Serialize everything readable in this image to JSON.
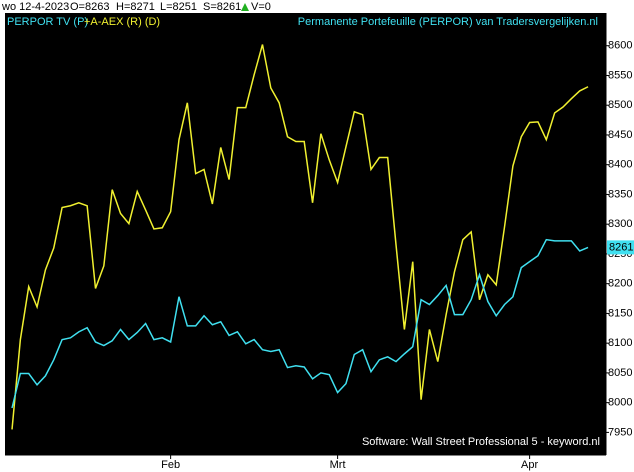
{
  "info": {
    "date": "wo 12-4-2023",
    "open": "O=8263",
    "high": "H=8271",
    "low": "L=8251",
    "close": "S=8261",
    "volume": "V=0"
  },
  "chart_data": {
    "type": "line",
    "title": "Permanente Portefeuille (PERPOR) van Tradersvergelijken.nl",
    "watermark": "Software: Wall Street Professional 5 - keyword.nl",
    "x": [
      0,
      1,
      2,
      3,
      4,
      5,
      6,
      7,
      8,
      9,
      10,
      11,
      12,
      13,
      14,
      15,
      16,
      17,
      18,
      19,
      20,
      21,
      22,
      23,
      24,
      25,
      26,
      27,
      28,
      29,
      30,
      31,
      32,
      33,
      34,
      35,
      36,
      37,
      38,
      39,
      40,
      41,
      42,
      43,
      44,
      45,
      46,
      47,
      48,
      49,
      50,
      51,
      52,
      53,
      54,
      55,
      56,
      57,
      58,
      59,
      60,
      61,
      62,
      63,
      64,
      65,
      66,
      67,
      68,
      69
    ],
    "xlim": [
      -0.84,
      71.15
    ],
    "xticks": [
      {
        "value": 19,
        "label": "Feb"
      },
      {
        "value": 39,
        "label": "Mrt"
      },
      {
        "value": 62,
        "label": "Apr"
      }
    ],
    "ylim": [
      7912,
      8655
    ],
    "yticks": [
      7950,
      8000,
      8050,
      8100,
      8150,
      8200,
      8250,
      8300,
      8350,
      8400,
      8450,
      8500,
      8550,
      8600
    ],
    "background": "#000000",
    "series": [
      {
        "name": "PERPOR TV (P)",
        "color": "#40e0f0",
        "values": [
          7991,
          8049,
          8049,
          8030,
          8045,
          8072,
          8106,
          8109,
          8119,
          8126,
          8102,
          8096,
          8104,
          8123,
          8106,
          8118,
          8133,
          8106,
          8109,
          8102,
          8178,
          8129,
          8129,
          8146,
          8131,
          8136,
          8113,
          8119,
          8099,
          8106,
          8089,
          8086,
          8089,
          8059,
          8062,
          8060,
          8040,
          8050,
          8047,
          8017,
          8032,
          8081,
          8089,
          8052,
          8072,
          8077,
          8069,
          8082,
          8094,
          8173,
          8165,
          8180,
          8197,
          8148,
          8148,
          8173,
          8215,
          8170,
          8146,
          8165,
          8178,
          8227,
          8237,
          8247,
          8274,
          8272,
          8272,
          8272,
          8255,
          8261
        ]
      },
      {
        "name": "+A-AEX (R) (D)",
        "color": "#f0f030",
        "values": [
          7955,
          8106,
          8195,
          8161,
          8223,
          8260,
          8328,
          8331,
          8336,
          8331,
          8192,
          8230,
          8358,
          8318,
          8301,
          8355,
          8324,
          8292,
          8294,
          8321,
          8442,
          8504,
          8385,
          8392,
          8334,
          8429,
          8375,
          8496,
          8496,
          8551,
          8602,
          8529,
          8504,
          8447,
          8439,
          8439,
          8336,
          8452,
          8408,
          8370,
          8430,
          8489,
          8484,
          8392,
          8412,
          8412,
          8265,
          8123,
          8237,
          8005,
          8123,
          8069,
          8148,
          8220,
          8274,
          8287,
          8173,
          8215,
          8198,
          8296,
          8398,
          8447,
          8471,
          8472,
          8442,
          8487,
          8497,
          8511,
          8524,
          8531
        ]
      }
    ]
  }
}
